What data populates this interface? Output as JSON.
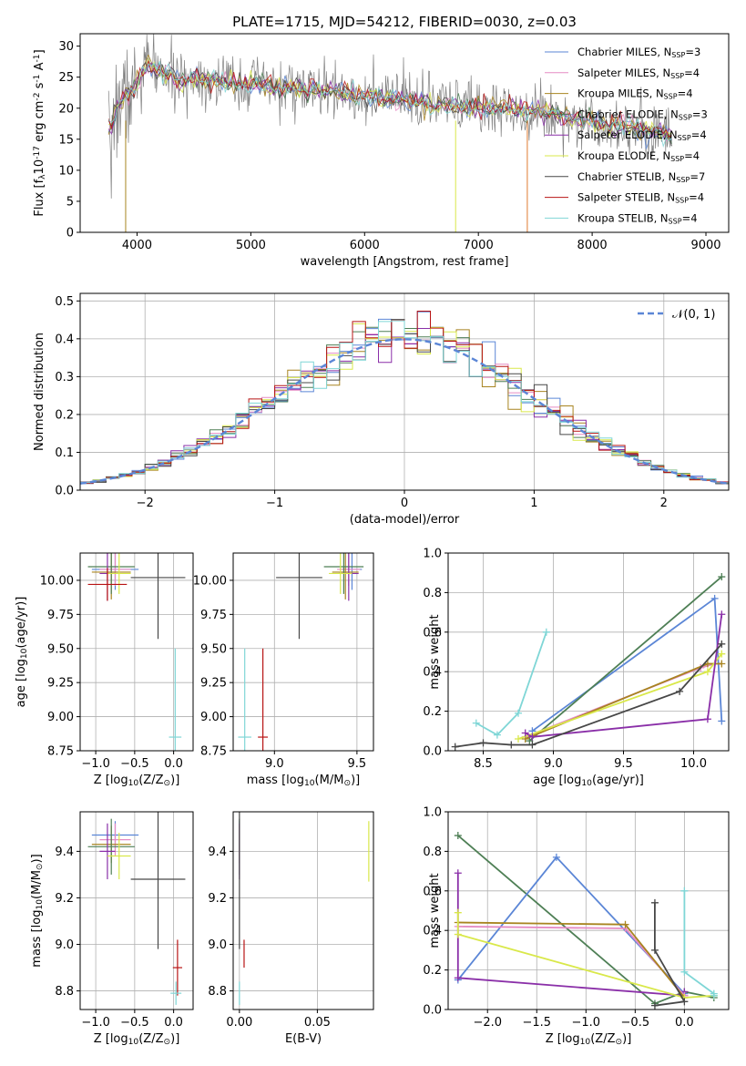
{
  "colors": {
    "Chabrier MILES": "#5b86d6",
    "Salpeter MILES": "#e58bc3",
    "Kroupa MILES": "#a88420",
    "Chabrier ELODIE": "#4e7f55",
    "Salpeter ELODIE": "#8a2fa8",
    "Kroupa ELODIE": "#d9e84a",
    "Chabrier STELIB": "#474747",
    "Salpeter STELIB": "#b81414",
    "Kroupa STELIB": "#7fd6d6",
    "data_gray": "#808080",
    "normal_curve": "#5b86d6",
    "orange": "#e07b30"
  },
  "chart_data": [
    {
      "id": "spectrum",
      "type": "line",
      "title": "PLATE=1715, MJD=54212, FIBERID=0030, z=0.03",
      "xlabel": "wavelength [Angstrom, rest frame]",
      "ylabel": "Flux [f$_\\lambda$10$^{-17}$ erg cm$^{-2}$ s$^{-1}$ A$^{-1}$]",
      "xlim": [
        3500,
        9200
      ],
      "ylim": [
        0,
        32
      ],
      "xticks": [
        4000,
        5000,
        6000,
        7000,
        8000,
        9000
      ],
      "yticks": [
        0,
        5,
        10,
        15,
        20,
        25,
        30
      ],
      "legend_position": "top-right",
      "spectrum_profile": {
        "x": [
          3750,
          3800,
          3850,
          3900,
          3950,
          4000,
          4050,
          4100,
          4200,
          4300,
          4400,
          4500,
          4700,
          5000,
          5200,
          5500,
          5800,
          6000,
          6300,
          6500,
          6700,
          7000,
          7200,
          7500,
          7800,
          8000,
          8300,
          8600,
          8700
        ],
        "y": [
          17,
          19,
          21,
          22,
          22,
          24,
          26,
          27,
          26,
          25,
          24,
          25,
          24.5,
          24,
          23.5,
          23,
          22.5,
          22,
          21.5,
          21,
          20.5,
          20,
          20,
          19.5,
          18.5,
          18,
          17,
          16,
          15.5
        ]
      },
      "series": [
        {
          "name": "Chabrier MILES, N$_{SSP}$=3"
        },
        {
          "name": "Salpeter MILES, N$_{SSP}$=4"
        },
        {
          "name": "Kroupa MILES, N$_{SSP}$=4"
        },
        {
          "name": "Chabrier ELODIE, N$_{SSP}$=3"
        },
        {
          "name": "Salpeter ELODIE, N$_{SSP}$=4"
        },
        {
          "name": "Kroupa ELODIE, N$_{SSP}$=4"
        },
        {
          "name": "Chabrier STELIB, N$_{SSP}$=7"
        },
        {
          "name": "Salpeter STELIB, N$_{SSP}$=4"
        },
        {
          "name": "Kroupa STELIB, N$_{SSP}$=4"
        }
      ]
    },
    {
      "id": "residuals",
      "type": "line",
      "xlabel": "(data-model)/error",
      "ylabel": "Normed distribution",
      "xlim": [
        -2.5,
        2.5
      ],
      "ylim": [
        0,
        0.52
      ],
      "xticks": [
        -2,
        -1,
        0,
        1,
        2
      ],
      "yticks": [
        0.0,
        0.1,
        0.2,
        0.3,
        0.4,
        0.5
      ],
      "grid": true,
      "legend_position": "top-right",
      "normal_label": "$\\mathcal{N}(0, 1)$",
      "bins": [
        -2.5,
        2.5,
        50
      ]
    },
    {
      "id": "age_vs_Z",
      "type": "scatter",
      "xlabel": "Z [log$_{10}$($Z/Z_\\odot$)]",
      "ylabel": "age  [log$_{10}$($age/yr$)]",
      "xlim": [
        -1.2,
        0.25
      ],
      "ylim": [
        8.75,
        10.2
      ],
      "xticks": [
        -1.0,
        -0.5,
        0.0
      ],
      "yticks": [
        8.75,
        9.0,
        9.25,
        9.5,
        9.75,
        10.0
      ],
      "grid": true,
      "points": [
        {
          "model": "Chabrier MILES",
          "x": -0.75,
          "xerr": 0.3,
          "y": 10.08,
          "yerr": 0.15
        },
        {
          "model": "Salpeter MILES",
          "x": -0.75,
          "xerr": 0.2,
          "y": 10.08,
          "yerr": 0.12
        },
        {
          "model": "Kroupa MILES",
          "x": -0.8,
          "xerr": 0.25,
          "y": 10.06,
          "yerr": 0.2
        },
        {
          "model": "Chabrier ELODIE",
          "x": -0.8,
          "xerr": 0.3,
          "y": 10.1,
          "yerr": 0.2
        },
        {
          "model": "Salpeter ELODIE",
          "x": -0.85,
          "xerr": 0.1,
          "y": 10.05,
          "yerr": 0.2
        },
        {
          "model": "Kroupa ELODIE",
          "x": -0.7,
          "xerr": 0.15,
          "y": 10.05,
          "yerr": 0.15
        },
        {
          "model": "Chabrier STELIB",
          "x": -0.2,
          "xerr": 0.35,
          "y": 10.02,
          "yerr": 0.45
        },
        {
          "model": "Salpeter STELIB",
          "x": -0.85,
          "xerr": 0.25,
          "y": 9.97,
          "yerr": 0.12
        },
        {
          "model": "Kroupa STELIB",
          "x": 0.02,
          "xerr": 0.08,
          "y": 8.85,
          "yerr": 0.65
        }
      ]
    },
    {
      "id": "age_vs_mass",
      "type": "scatter",
      "xlabel": "mass [log$_{10}$($M/M_\\odot$)]",
      "xlim": [
        8.75,
        9.6
      ],
      "ylim": [
        8.75,
        10.2
      ],
      "xticks": [
        9.0,
        9.5
      ],
      "yticks": [
        8.75,
        9.0,
        9.25,
        9.5,
        9.75,
        10.0
      ],
      "grid": true,
      "points": [
        {
          "model": "Chabrier MILES",
          "x": 9.47,
          "xerr": 0.06,
          "y": 10.08,
          "yerr": 0.15
        },
        {
          "model": "Salpeter MILES",
          "x": 9.45,
          "xerr": 0.07,
          "y": 10.08,
          "yerr": 0.12
        },
        {
          "model": "Kroupa MILES",
          "x": 9.43,
          "xerr": 0.08,
          "y": 10.06,
          "yerr": 0.2
        },
        {
          "model": "Chabrier ELODIE",
          "x": 9.42,
          "xerr": 0.12,
          "y": 10.1,
          "yerr": 0.2
        },
        {
          "model": "Salpeter ELODIE",
          "x": 9.45,
          "xerr": 0.06,
          "y": 10.05,
          "yerr": 0.2
        },
        {
          "model": "Kroupa ELODIE",
          "x": 9.4,
          "xerr": 0.07,
          "y": 10.05,
          "yerr": 0.15
        },
        {
          "model": "Chabrier STELIB",
          "x": 9.15,
          "xerr": 0.14,
          "y": 10.02,
          "yerr": 0.45
        },
        {
          "model": "Salpeter STELIB",
          "x": 8.93,
          "xerr": 0.03,
          "y": 8.85,
          "yerr": 0.65
        },
        {
          "model": "Kroupa STELIB",
          "x": 8.82,
          "xerr": 0.04,
          "y": 8.85,
          "yerr": 0.65
        }
      ]
    },
    {
      "id": "massweight_vs_age",
      "type": "line",
      "xlabel": "age  [log$_{10}$($age/yr$)]",
      "ylabel": "mass weight",
      "xlim": [
        8.25,
        10.25
      ],
      "ylim": [
        0,
        1
      ],
      "xticks": [
        8.5,
        9.0,
        9.5,
        10.0
      ],
      "yticks": [
        0.0,
        0.2,
        0.4,
        0.6,
        0.8,
        1.0
      ],
      "grid": true,
      "series": [
        {
          "model": "Kroupa STELIB",
          "x": [
            8.45,
            8.6,
            8.75,
            8.95
          ],
          "y": [
            0.14,
            0.08,
            0.19,
            0.6
          ]
        },
        {
          "model": "Chabrier MILES",
          "x": [
            8.85,
            10.15,
            10.2
          ],
          "y": [
            0.1,
            0.77,
            0.15
          ]
        },
        {
          "model": "Chabrier ELODIE",
          "x": [
            8.83,
            10.2
          ],
          "y": [
            0.05,
            0.88
          ]
        },
        {
          "model": "Salpeter MILES",
          "x": [
            8.8,
            10.05,
            10.15
          ],
          "y": [
            0.07,
            0.42,
            0.44
          ]
        },
        {
          "model": "Kroupa MILES",
          "x": [
            8.8,
            10.1,
            10.2
          ],
          "y": [
            0.06,
            0.44,
            0.44
          ]
        },
        {
          "model": "Kroupa ELODIE",
          "x": [
            8.75,
            10.1,
            10.2
          ],
          "y": [
            0.06,
            0.4,
            0.49
          ]
        },
        {
          "model": "Salpeter ELODIE",
          "x": [
            8.8,
            8.85,
            10.1,
            10.2
          ],
          "y": [
            0.09,
            0.07,
            0.16,
            0.69
          ]
        },
        {
          "model": "Chabrier STELIB",
          "x": [
            8.3,
            8.5,
            8.7,
            8.85,
            9.9,
            10.2
          ],
          "y": [
            0.02,
            0.04,
            0.03,
            0.03,
            0.3,
            0.54
          ]
        }
      ]
    },
    {
      "id": "mass_vs_Z",
      "type": "scatter",
      "xlabel": "Z [log$_{10}$($Z/Z_\\odot$)]",
      "ylabel": "mass [log$_{10}$($M/M_\\odot$)]",
      "xlim": [
        -1.2,
        0.25
      ],
      "ylim": [
        8.72,
        9.57
      ],
      "xticks": [
        -1.0,
        -0.5,
        0.0
      ],
      "yticks": [
        8.8,
        9.0,
        9.2,
        9.4
      ],
      "grid": true,
      "points": [
        {
          "model": "Chabrier MILES",
          "x": -0.75,
          "xerr": 0.3,
          "y": 9.47,
          "yerr": 0.06
        },
        {
          "model": "Salpeter MILES",
          "x": -0.75,
          "xerr": 0.2,
          "y": 9.45,
          "yerr": 0.07
        },
        {
          "model": "Kroupa MILES",
          "x": -0.8,
          "xerr": 0.25,
          "y": 9.43,
          "yerr": 0.08
        },
        {
          "model": "Chabrier ELODIE",
          "x": -0.8,
          "xerr": 0.3,
          "y": 9.42,
          "yerr": 0.12
        },
        {
          "model": "Salpeter ELODIE",
          "x": -0.85,
          "xerr": 0.1,
          "y": 9.4,
          "yerr": 0.12
        },
        {
          "model": "Kroupa ELODIE",
          "x": -0.7,
          "xerr": 0.15,
          "y": 9.38,
          "yerr": 0.1
        },
        {
          "model": "Chabrier STELIB",
          "x": -0.2,
          "xerr": 0.35,
          "y": 9.28,
          "yerr": 0.3
        },
        {
          "model": "Salpeter STELIB",
          "x": 0.05,
          "xerr": 0.06,
          "y": 8.9,
          "yerr": 0.12
        },
        {
          "model": "Kroupa STELIB",
          "x": 0.03,
          "xerr": 0.07,
          "y": 8.79,
          "yerr": 0.05
        }
      ]
    },
    {
      "id": "mass_vs_ebv",
      "type": "scatter",
      "xlabel": "E(B-V)",
      "xlim": [
        -0.004,
        0.086
      ],
      "ylim": [
        8.72,
        9.57
      ],
      "xticks": [
        0.0,
        0.05
      ],
      "yticks": [
        8.8,
        9.0,
        9.2,
        9.4
      ],
      "grid": true,
      "points": [
        {
          "model": "Chabrier MILES",
          "x": 0.0,
          "y": 9.47,
          "yerr": 0.06
        },
        {
          "model": "Salpeter MILES",
          "x": 0.0,
          "y": 9.45,
          "yerr": 0.07
        },
        {
          "model": "Kroupa MILES",
          "x": 0.0,
          "y": 9.43,
          "yerr": 0.08
        },
        {
          "model": "Chabrier ELODIE",
          "x": 0.0,
          "y": 9.42,
          "yerr": 0.12
        },
        {
          "model": "Salpeter ELODIE",
          "x": 0.0,
          "y": 9.4,
          "yerr": 0.12
        },
        {
          "model": "Kroupa ELODIE",
          "x": 0.083,
          "y": 9.4,
          "yerr": 0.13
        },
        {
          "model": "Chabrier STELIB",
          "x": 0.0,
          "y": 9.28,
          "yerr": 0.3
        },
        {
          "model": "Salpeter STELIB",
          "x": 0.003,
          "y": 8.96,
          "yerr": 0.06
        },
        {
          "model": "Kroupa STELIB",
          "x": 0.0,
          "y": 8.79,
          "yerr": 0.05
        }
      ]
    },
    {
      "id": "massweight_vs_Z",
      "type": "line",
      "xlabel": "Z [log$_{10}$($Z/Z_\\odot$)]",
      "ylabel": "mass weight",
      "xlim": [
        -2.4,
        0.45
      ],
      "ylim": [
        0,
        1
      ],
      "xticks": [
        -2.0,
        -1.5,
        -1.0,
        -0.5,
        0.0
      ],
      "yticks": [
        0.0,
        0.2,
        0.4,
        0.6,
        0.8,
        1.0
      ],
      "grid": true,
      "series": [
        {
          "model": "Chabrier ELODIE",
          "x": [
            -2.3,
            -0.3,
            0.0,
            0.3
          ],
          "y": [
            0.88,
            0.03,
            0.09,
            0.06
          ]
        },
        {
          "model": "Chabrier MILES",
          "x": [
            -2.3,
            -1.3,
            0.0
          ],
          "y": [
            0.15,
            0.77,
            0.08
          ]
        },
        {
          "model": "Salpeter ELODIE",
          "x": [
            -2.3,
            -2.3,
            0.0,
            0.0
          ],
          "y": [
            0.69,
            0.16,
            0.07,
            0.09
          ]
        },
        {
          "model": "Salpeter MILES",
          "x": [
            -2.3,
            -0.6,
            0.0
          ],
          "y": [
            0.42,
            0.41,
            0.07
          ]
        },
        {
          "model": "Kroupa MILES",
          "x": [
            -2.3,
            -0.6,
            0.0
          ],
          "y": [
            0.44,
            0.43,
            0.06
          ]
        },
        {
          "model": "Kroupa ELODIE",
          "x": [
            -2.3,
            -2.3,
            0.0,
            0.3
          ],
          "y": [
            0.49,
            0.38,
            0.06,
            0.07
          ]
        },
        {
          "model": "Chabrier STELIB",
          "x": [
            -0.3,
            -0.3,
            0.0,
            -0.3
          ],
          "y": [
            0.54,
            0.3,
            0.04,
            0.02
          ]
        },
        {
          "model": "Kroupa STELIB",
          "x": [
            0.0,
            0.0,
            0.3,
            0.3
          ],
          "y": [
            0.6,
            0.19,
            0.08,
            0.07
          ]
        }
      ]
    }
  ]
}
